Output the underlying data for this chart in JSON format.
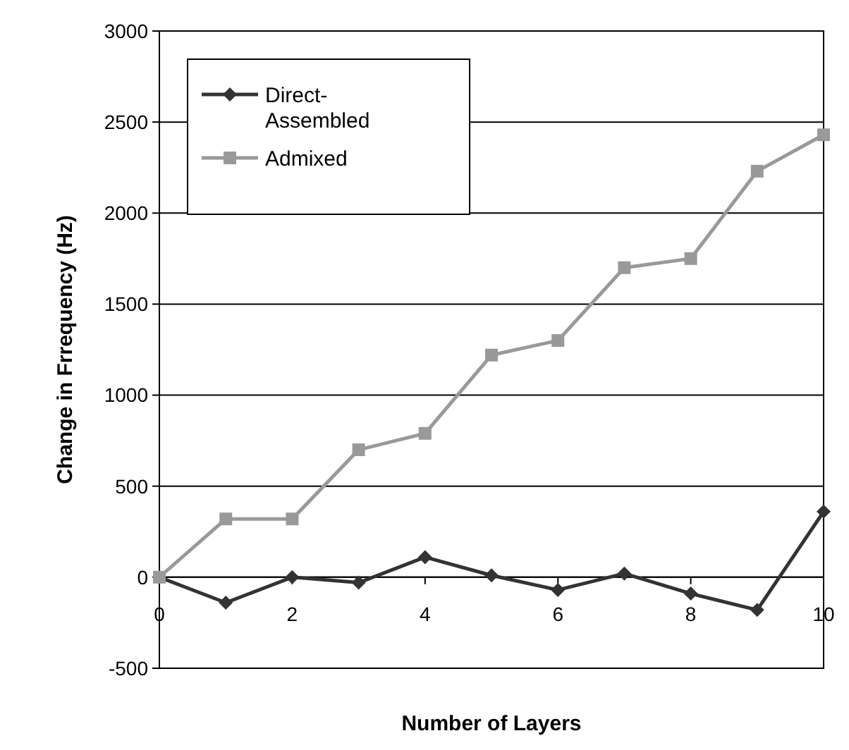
{
  "chart_data": {
    "type": "line",
    "xlabel": "Number of Layers",
    "ylabel": "Change in Frrequency (Hz)",
    "x": [
      0,
      1,
      2,
      3,
      4,
      5,
      6,
      7,
      8,
      9,
      10
    ],
    "series": [
      {
        "name": "Direct-Assembled",
        "color": "#333333",
        "marker": "diamond",
        "values": [
          0,
          -140,
          0,
          -30,
          110,
          10,
          -70,
          20,
          -90,
          -180,
          360
        ]
      },
      {
        "name": "Admixed",
        "color": "#999999",
        "marker": "square",
        "values": [
          0,
          320,
          320,
          700,
          790,
          1220,
          1300,
          1700,
          1750,
          2230,
          2430
        ]
      }
    ],
    "xlim": [
      0,
      10
    ],
    "xticks": [
      0,
      2,
      4,
      6,
      8,
      10
    ],
    "ylim": [
      -500,
      3000
    ],
    "yticks": [
      -500,
      0,
      500,
      1000,
      1500,
      2000,
      2500,
      3000
    ],
    "grid": "y",
    "legend": "top left"
  }
}
